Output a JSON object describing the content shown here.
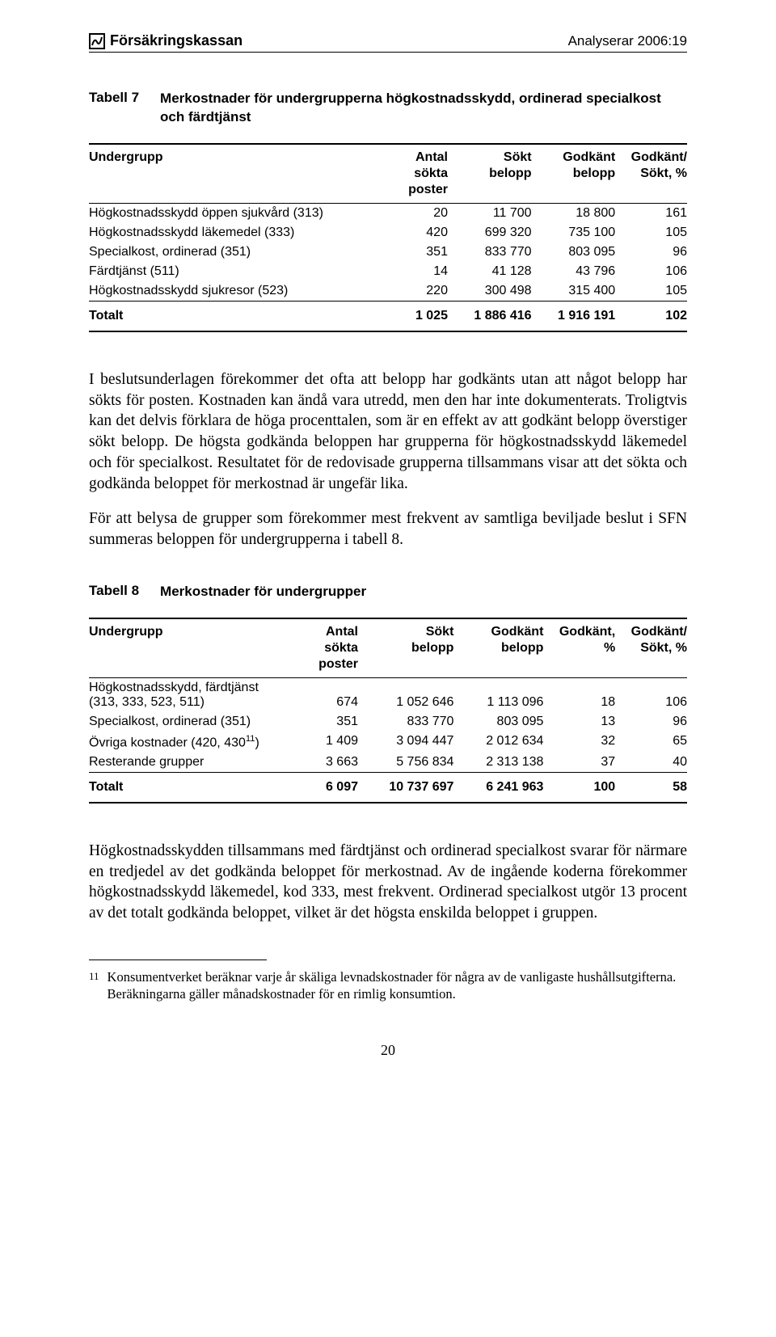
{
  "header": {
    "brand": "Försäkringskassan",
    "doc_id": "Analyserar 2006:19"
  },
  "table7": {
    "label": "Tabell 7",
    "title": "Merkostnader för undergrupperna högkostnadsskydd, ordinerad specialkost och färdtjänst",
    "columns": {
      "c0": "Undergrupp",
      "c1a": "Antal",
      "c1b": "sökta",
      "c1c": "poster",
      "c2a": "Sökt",
      "c2b": "belopp",
      "c3a": "Godkänt",
      "c3b": "belopp",
      "c4a": "Godkänt/",
      "c4b": "Sökt, %"
    },
    "rows": [
      {
        "label": "Högkostnadsskydd öppen sjukvård (313)",
        "v": [
          "20",
          "11 700",
          "18 800",
          "161"
        ]
      },
      {
        "label": "Högkostnadsskydd läkemedel (333)",
        "v": [
          "420",
          "699 320",
          "735 100",
          "105"
        ]
      },
      {
        "label": "Specialkost, ordinerad (351)",
        "v": [
          "351",
          "833 770",
          "803 095",
          "96"
        ]
      },
      {
        "label": "Färdtjänst (511)",
        "v": [
          "14",
          "41 128",
          "43 796",
          "106"
        ]
      },
      {
        "label": "Högkostnadsskydd sjukresor (523)",
        "v": [
          "220",
          "300 498",
          "315 400",
          "105"
        ]
      }
    ],
    "total": {
      "label": "Totalt",
      "v": [
        "1 025",
        "1 886 416",
        "1 916 191",
        "102"
      ]
    }
  },
  "para1": "I beslutsunderlagen förekommer det ofta att belopp har godkänts utan att något belopp har sökts för posten. Kostnaden kan ändå vara utredd, men den har inte dokumenterats. Troligtvis kan det delvis förklara de höga procenttalen, som är en effekt av att godkänt belopp överstiger sökt belopp. De högsta godkända beloppen har grupperna för högkostnadsskydd läkemedel och för specialkost. Resultatet för de redovisade grupperna tillsammans visar att det sökta och godkända beloppet för merkostnad är ungefär lika.",
  "para2": "För att belysa de grupper som förekommer mest frekvent av samtliga beviljade beslut i SFN summeras beloppen för undergrupperna i tabell 8.",
  "table8": {
    "label": "Tabell 8",
    "title": "Merkostnader för undergrupper",
    "columns": {
      "c0": "Undergrupp",
      "c1a": "Antal",
      "c1b": "sökta",
      "c1c": "poster",
      "c2a": "Sökt",
      "c2b": "belopp",
      "c3a": "Godkänt",
      "c3b": "belopp",
      "c4a": "Godkänt,",
      "c4b": "%",
      "c5a": "Godkänt/",
      "c5b": "Sökt, %"
    },
    "row0": {
      "label_a": "Högkostnadsskydd, färdtjänst",
      "label_b": "(313, 333, 523, 511)",
      "v": [
        "674",
        "1 052 646",
        "1 113 096",
        "18",
        "106"
      ]
    },
    "rows": [
      {
        "label": "Specialkost, ordinerad (351)",
        "v": [
          "351",
          "833 770",
          "803 095",
          "13",
          "96"
        ]
      },
      {
        "label_html": "Övriga kostnader (420, 430",
        "sup": "11",
        "label_tail": ")",
        "v": [
          "1 409",
          "3 094 447",
          "2 012 634",
          "32",
          "65"
        ]
      },
      {
        "label": "Resterande grupper",
        "v": [
          "3 663",
          "5 756 834",
          "2 313 138",
          "37",
          "40"
        ]
      }
    ],
    "total": {
      "label": "Totalt",
      "v": [
        "6 097",
        "10 737 697",
        "6 241 963",
        "100",
        "58"
      ]
    }
  },
  "para3": "Högkostnadsskydden tillsammans med färdtjänst och ordinerad specialkost svarar för närmare en tredjedel av det godkända beloppet för merkostnad. Av de ingående koderna förekommer högkostnadsskydd läkemedel, kod 333, mest frekvent. Ordinerad specialkost utgör 13 procent av det totalt godkända beloppet, vilket är det högsta enskilda beloppet i gruppen.",
  "footnote": {
    "num": "11",
    "text": "Konsumentverket beräknar varje år skäliga levnadskostnader för några av de vanligaste hushållsutgifterna. Beräkningarna gäller månadskostnader för en rimlig konsumtion."
  },
  "pagenum": "20"
}
